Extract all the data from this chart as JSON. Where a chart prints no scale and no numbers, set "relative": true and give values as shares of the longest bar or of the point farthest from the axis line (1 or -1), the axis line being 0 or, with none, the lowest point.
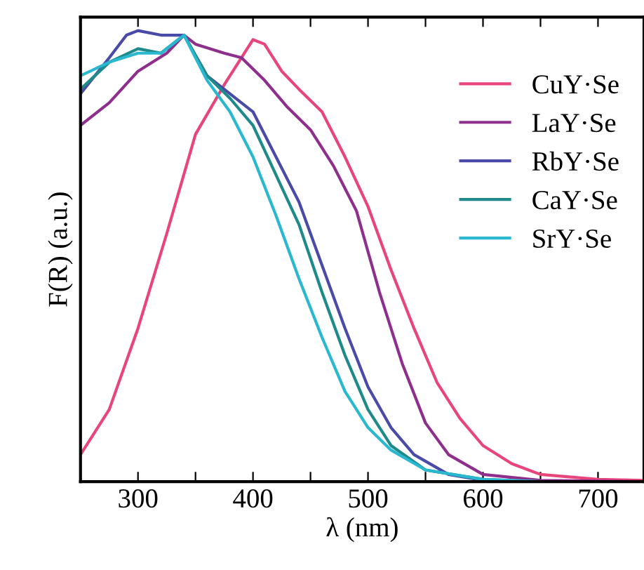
{
  "chart_data": {
    "type": "line",
    "xlabel": "λ (nm)",
    "ylabel": "F(R) (a.u.)",
    "relative": true,
    "xlim": [
      250,
      740
    ],
    "xticks": [
      {
        "value": 250,
        "label": null
      },
      300,
      {
        "value": 350,
        "label": null
      },
      400,
      {
        "value": 450,
        "label": null
      },
      500,
      {
        "value": 550,
        "label": null
      },
      600,
      {
        "value": 650,
        "label": null
      },
      700
    ],
    "legend": "top right",
    "grid": false,
    "line_style": "solid",
    "marker": "none",
    "series": [
      {
        "name": "CuY·Se",
        "color": "#e8457a",
        "x": [
          250,
          275,
          300,
          325,
          350,
          375,
          390,
          400,
          410,
          425,
          440,
          460,
          480,
          500,
          520,
          540,
          560,
          580,
          600,
          625,
          650,
          700,
          740
        ],
        "values": [
          0.06,
          0.16,
          0.34,
          0.55,
          0.77,
          0.88,
          0.94,
          0.98,
          0.97,
          0.91,
          0.87,
          0.82,
          0.72,
          0.61,
          0.47,
          0.34,
          0.22,
          0.14,
          0.08,
          0.04,
          0.016,
          0.005,
          0.003
        ]
      },
      {
        "name": "LaY·Se",
        "color": "#8e2f8e",
        "x": [
          250,
          275,
          300,
          325,
          340,
          350,
          375,
          390,
          410,
          430,
          450,
          470,
          490,
          510,
          530,
          550,
          570,
          600,
          650,
          740
        ],
        "values": [
          0.79,
          0.84,
          0.91,
          0.95,
          0.99,
          0.97,
          0.95,
          0.94,
          0.89,
          0.83,
          0.78,
          0.7,
          0.6,
          0.42,
          0.26,
          0.13,
          0.06,
          0.016,
          0.003,
          0
        ]
      },
      {
        "name": "RbY·Se",
        "color": "#4a4aa8",
        "x": [
          250,
          275,
          290,
          300,
          320,
          340,
          360,
          380,
          400,
          420,
          440,
          460,
          480,
          500,
          520,
          540,
          570,
          600,
          650,
          740
        ],
        "values": [
          0.86,
          0.94,
          0.99,
          1.0,
          0.99,
          0.99,
          0.9,
          0.86,
          0.82,
          0.72,
          0.62,
          0.48,
          0.34,
          0.21,
          0.12,
          0.06,
          0.016,
          0.003,
          0,
          0
        ]
      },
      {
        "name": "CaY·Se",
        "color": "#1e8a8a",
        "x": [
          250,
          275,
          300,
          320,
          340,
          360,
          380,
          400,
          420,
          440,
          460,
          480,
          500,
          520,
          550,
          600,
          650,
          740
        ],
        "values": [
          0.87,
          0.93,
          0.96,
          0.95,
          0.99,
          0.9,
          0.85,
          0.79,
          0.68,
          0.57,
          0.42,
          0.28,
          0.16,
          0.08,
          0.026,
          0.005,
          0,
          0
        ]
      },
      {
        "name": "SrY·Se",
        "color": "#2ab8d0",
        "x": [
          250,
          275,
          300,
          320,
          340,
          360,
          380,
          400,
          420,
          440,
          460,
          480,
          500,
          520,
          550,
          600,
          650,
          740
        ],
        "values": [
          0.9,
          0.93,
          0.95,
          0.95,
          0.99,
          0.89,
          0.82,
          0.72,
          0.59,
          0.45,
          0.32,
          0.2,
          0.12,
          0.07,
          0.026,
          0.005,
          0,
          0
        ]
      }
    ]
  }
}
